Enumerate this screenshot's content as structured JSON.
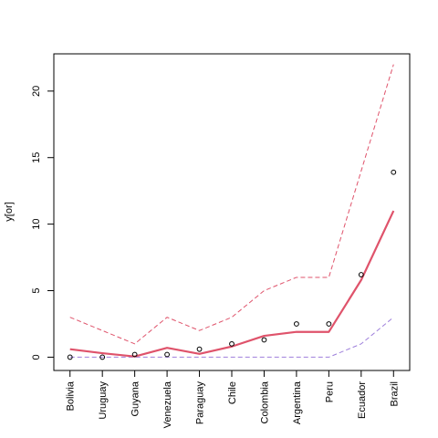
{
  "chart_data": {
    "type": "line",
    "title": "",
    "xlabel": "",
    "ylabel": "y[or]",
    "categories": [
      "Bolivia",
      "Uruguay",
      "Guyana",
      "Venezuela",
      "Paraguay",
      "Chile",
      "Colombia",
      "Argentina",
      "Peru",
      "Ecuador",
      "Brazil"
    ],
    "ylim": [
      -1,
      22.8
    ],
    "yticks": [
      0,
      5,
      10,
      15,
      20
    ],
    "grid": false,
    "legend": "none",
    "points": [
      0,
      0,
      0.2,
      0.2,
      0.6,
      1,
      1.3,
      2.5,
      2.5,
      6.2,
      13.9
    ],
    "fit": [
      0.6,
      0.3,
      0.05,
      0.7,
      0.25,
      0.8,
      1.6,
      1.9,
      1.9,
      5.8,
      11.0
    ],
    "upper": [
      3,
      2,
      1,
      3,
      2,
      3,
      5,
      6,
      6,
      14,
      22
    ],
    "lower": [
      0,
      0,
      0,
      0,
      0,
      0,
      0,
      0,
      0,
      1,
      3
    ],
    "colors": {
      "fit": "#DF536B",
      "band": "#DF536B",
      "lower": "#9E7FDB",
      "points": "#000000"
    }
  }
}
